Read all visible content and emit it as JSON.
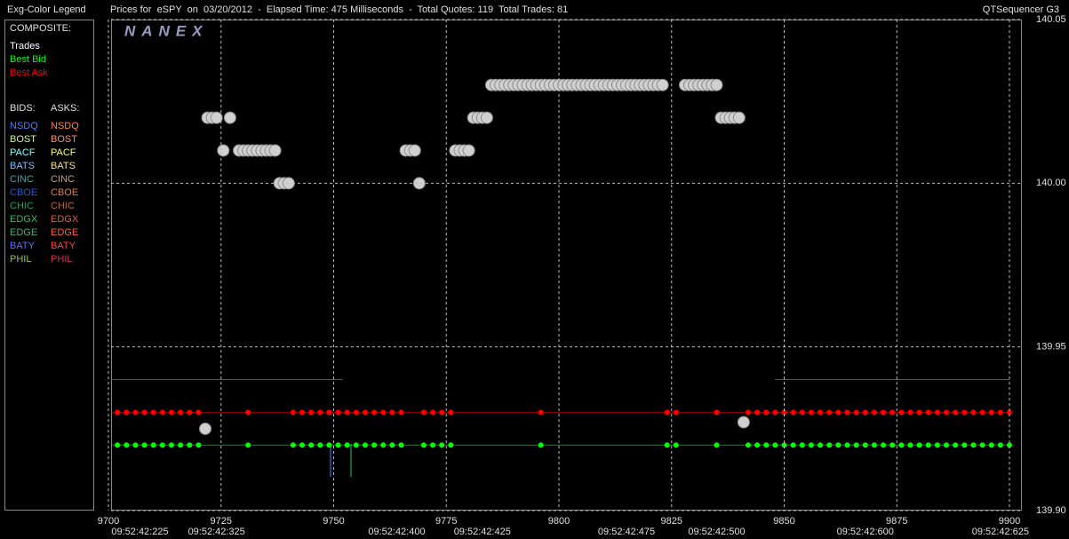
{
  "header": {
    "left": "Exg-Color Legend",
    "center": "Prices for  eSPY  on  03/20/2012  -  Elapsed Time: 475 Milliseconds  -  Total Quotes: 119  Total Trades: 81",
    "right": "QTSequencer G3"
  },
  "legend_panel": {
    "composite_title": "COMPOSITE:",
    "bids_title": "BIDS:",
    "asks_title": "ASKS:",
    "bids": [
      {
        "name": "NSDQ",
        "color": "#4a7fff"
      },
      {
        "name": "BOST",
        "color": "#c8ff8c"
      },
      {
        "name": "PACF",
        "color": "#80ffff"
      },
      {
        "name": "BATS",
        "color": "#80c0ff"
      },
      {
        "name": "CINC",
        "color": "#4aa0a0"
      },
      {
        "name": "CBOE",
        "color": "#2a5ad0"
      },
      {
        "name": "CHIC",
        "color": "#20a060"
      },
      {
        "name": "EDGX",
        "color": "#30c060"
      },
      {
        "name": "EDGE",
        "color": "#50b070"
      },
      {
        "name": "BATY",
        "color": "#5a70ff"
      },
      {
        "name": "PHIL",
        "color": "#90c060"
      }
    ],
    "asks": [
      {
        "name": "NSDQ",
        "color": "#ff8040"
      },
      {
        "name": "BOST",
        "color": "#ff9070"
      },
      {
        "name": "PACF",
        "color": "#ffff60"
      },
      {
        "name": "BATS",
        "color": "#ffe080"
      },
      {
        "name": "CINC",
        "color": "#c0a080"
      },
      {
        "name": "CBOE",
        "color": "#e08040"
      },
      {
        "name": "CHIC",
        "color": "#c06030"
      },
      {
        "name": "EDGX",
        "color": "#e06040"
      },
      {
        "name": "EDGE",
        "color": "#ff6040"
      },
      {
        "name": "BATY",
        "color": "#ff4040"
      },
      {
        "name": "PHIL",
        "color": "#e03050"
      }
    ]
  },
  "chart_data": {
    "type": "scatter",
    "watermark": "NANEX",
    "xlim": [
      9700,
      9900
    ],
    "xticks": [
      9700,
      9725,
      9750,
      9775,
      9800,
      9825,
      9850,
      9875,
      9900
    ],
    "ylim": [
      139.9,
      140.05
    ],
    "yticks": [
      {
        "value": 139.9,
        "label": "139.90"
      },
      {
        "value": 139.95,
        "label": "139.95"
      },
      {
        "value": 140.0,
        "label": "140.00"
      },
      {
        "value": 140.05,
        "label": "140.05"
      }
    ],
    "grid": true,
    "time_labels": [
      {
        "value": 9707,
        "label": "09:52:42:225"
      },
      {
        "value": 9724,
        "label": "09:52:42:325"
      },
      {
        "value": 9764,
        "label": "09:52:42:400"
      },
      {
        "value": 9783,
        "label": "09:52:42:425"
      },
      {
        "value": 9815,
        "label": "09:52:42:475"
      },
      {
        "value": 9835,
        "label": "09:52:42:500"
      },
      {
        "value": 9868,
        "label": "09:52:42:600"
      },
      {
        "value": 9898,
        "label": "09:52:42:625"
      }
    ],
    "series": [
      {
        "color": "#c03020",
        "style": "line",
        "x": [
          9700,
          9752,
          null,
          9848,
          9900
        ],
        "values": [
          139.94,
          139.94,
          null,
          139.94,
          139.94
        ]
      },
      {
        "name": "Best Bid",
        "color": "#00ff00",
        "style": "dots",
        "x": [
          9700,
          9702,
          9704,
          9706,
          9708,
          9710,
          9712,
          9714,
          9716,
          9718,
          9720,
          9731,
          9741,
          9743,
          9745,
          9747,
          9749,
          9751,
          9753,
          9755,
          9757,
          9759,
          9761,
          9763,
          9765,
          9770,
          9772,
          9774,
          9776,
          9796,
          9824,
          9826,
          9835,
          9842,
          9844,
          9846,
          9848,
          9850,
          9852,
          9854,
          9856,
          9858,
          9860,
          9862,
          9864,
          9866,
          9868,
          9870,
          9872,
          9874,
          9876,
          9878,
          9880,
          9882,
          9884,
          9886,
          9888,
          9890,
          9892,
          9894,
          9896,
          9898,
          9900
        ],
        "values": [
          139.92,
          139.92,
          139.92,
          139.92,
          139.92,
          139.92,
          139.92,
          139.92,
          139.92,
          139.92,
          139.92,
          139.92,
          139.92,
          139.92,
          139.92,
          139.92,
          139.92,
          139.92,
          139.92,
          139.92,
          139.92,
          139.92,
          139.92,
          139.92,
          139.92,
          139.92,
          139.92,
          139.92,
          139.92,
          139.92,
          139.92,
          139.92,
          139.92,
          139.92,
          139.92,
          139.92,
          139.92,
          139.92,
          139.92,
          139.92,
          139.92,
          139.92,
          139.92,
          139.92,
          139.92,
          139.92,
          139.92,
          139.92,
          139.92,
          139.92,
          139.92,
          139.92,
          139.92,
          139.92,
          139.92,
          139.92,
          139.92,
          139.92,
          139.92,
          139.92,
          139.92,
          139.92,
          139.92
        ]
      },
      {
        "name": "Best Ask",
        "color": "#ff0000",
        "style": "dots",
        "x": [
          9700,
          9702,
          9704,
          9706,
          9708,
          9710,
          9712,
          9714,
          9716,
          9718,
          9720,
          9731,
          9741,
          9743,
          9745,
          9747,
          9749,
          9751,
          9753,
          9755,
          9757,
          9759,
          9761,
          9763,
          9765,
          9770,
          9772,
          9774,
          9776,
          9796,
          9824,
          9826,
          9835,
          9842,
          9844,
          9846,
          9848,
          9850,
          9852,
          9854,
          9856,
          9858,
          9860,
          9862,
          9864,
          9866,
          9868,
          9870,
          9872,
          9874,
          9876,
          9878,
          9880,
          9882,
          9884,
          9886,
          9888,
          9890,
          9892,
          9894,
          9896,
          9898,
          9900
        ],
        "values": [
          139.93,
          139.93,
          139.93,
          139.93,
          139.93,
          139.93,
          139.93,
          139.93,
          139.93,
          139.93,
          139.93,
          139.93,
          139.93,
          139.93,
          139.93,
          139.93,
          139.93,
          139.93,
          139.93,
          139.93,
          139.93,
          139.93,
          139.93,
          139.93,
          139.93,
          139.93,
          139.93,
          139.93,
          139.93,
          139.93,
          139.93,
          139.93,
          139.93,
          139.93,
          139.93,
          139.93,
          139.93,
          139.93,
          139.93,
          139.93,
          139.93,
          139.93,
          139.93,
          139.93,
          139.93,
          139.93,
          139.93,
          139.93,
          139.93,
          139.93,
          139.93,
          139.93,
          139.93,
          139.93,
          139.93,
          139.93,
          139.93,
          139.93,
          139.93,
          139.93,
          139.93,
          139.93,
          139.93
        ]
      },
      {
        "name": "Trades",
        "color": "#ffffff",
        "style": "trades",
        "x": [
          9721.5,
          9722,
          9723,
          9724,
          9725.5,
          9727,
          9729,
          9730,
          9731,
          9732,
          9733,
          9734,
          9735,
          9736,
          9737,
          9738,
          9739,
          9740,
          9766,
          9767,
          9768,
          9769,
          9777,
          9778,
          9779,
          9780,
          9781,
          9782,
          9783,
          9784,
          9785,
          9786,
          9787,
          9788,
          9789,
          9790,
          9791,
          9792,
          9793,
          9794,
          9795,
          9796,
          9797,
          9798,
          9799,
          9800,
          9801,
          9802,
          9803,
          9804,
          9805,
          9806,
          9807,
          9808,
          9809,
          9810,
          9811,
          9812,
          9813,
          9814,
          9815,
          9816,
          9817,
          9818,
          9819,
          9820,
          9821,
          9822,
          9823,
          9828,
          9829,
          9830,
          9831,
          9832,
          9833,
          9834,
          9835,
          9836,
          9837,
          9838,
          9839,
          9840,
          9841
        ],
        "values": [
          139.925,
          140.02,
          140.02,
          140.02,
          140.01,
          140.02,
          140.01,
          140.01,
          140.01,
          140.01,
          140.01,
          140.01,
          140.01,
          140.01,
          140.01,
          140.0,
          140.0,
          140.0,
          140.01,
          140.01,
          140.01,
          140.0,
          140.01,
          140.01,
          140.01,
          140.01,
          140.02,
          140.02,
          140.02,
          140.02,
          140.03,
          140.03,
          140.03,
          140.03,
          140.03,
          140.03,
          140.03,
          140.03,
          140.03,
          140.03,
          140.03,
          140.03,
          140.03,
          140.03,
          140.03,
          140.03,
          140.03,
          140.03,
          140.03,
          140.03,
          140.03,
          140.03,
          140.03,
          140.03,
          140.03,
          140.03,
          140.03,
          140.03,
          140.03,
          140.03,
          140.03,
          140.03,
          140.03,
          140.03,
          140.03,
          140.03,
          140.03,
          140.03,
          140.03,
          140.03,
          140.03,
          140.03,
          140.03,
          140.03,
          140.03,
          140.03,
          140.03,
          140.02,
          140.02,
          140.02,
          140.02,
          140.02,
          139.927
        ]
      }
    ]
  }
}
